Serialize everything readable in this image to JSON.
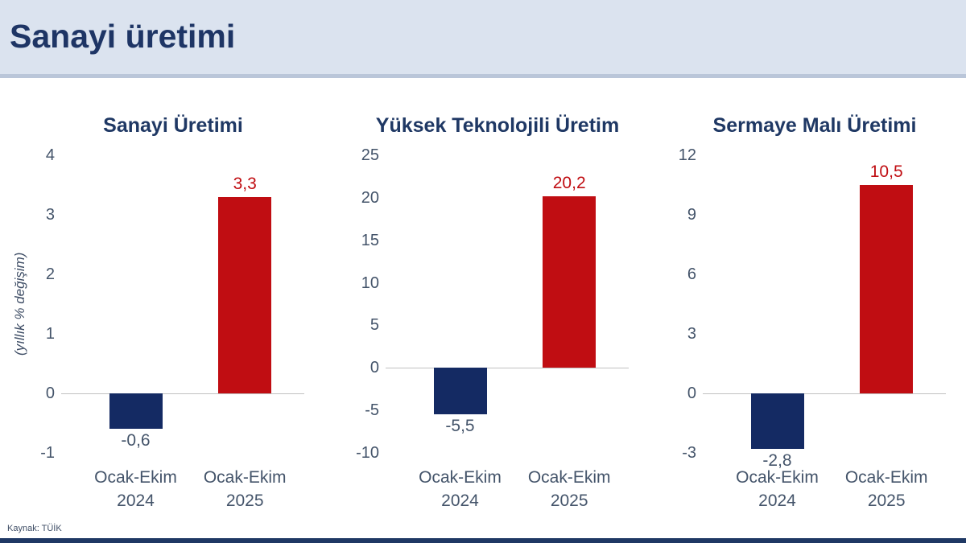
{
  "header": {
    "title": "Sanayi üretimi"
  },
  "source": "Kaynak: TÜİK",
  "colors": {
    "header_bg": "#dbe3ef",
    "header_border": "#bac6d9",
    "title_navy": "#1e3565",
    "chart_title_navy": "#1f3864",
    "tick_text": "#44546a",
    "navy_bar": "#142a63",
    "red_bar": "#c00d12",
    "zero_line": "#c0c0c0",
    "bottom_bar": "#1f3864"
  },
  "chart_data": [
    {
      "type": "bar",
      "title": "Sanayi Üretimi",
      "ylabel": "(yıllık % değişim)",
      "xlabel": "",
      "ylim": [
        -1,
        4
      ],
      "ticks": [
        4,
        3,
        2,
        1,
        0,
        -1
      ],
      "grid": false,
      "legend": "none",
      "categories": [
        "Ocak-Ekim\n2024",
        "Ocak-Ekim\n2025"
      ],
      "values": [
        -0.6,
        3.3
      ],
      "value_labels": [
        "-0,6",
        "3,3"
      ],
      "bar_colors": [
        "#142a63",
        "#c00d12"
      ],
      "label_colors": [
        "#44546a",
        "#c00d12"
      ]
    },
    {
      "type": "bar",
      "title": "Yüksek Teknolojili Üretim",
      "ylabel": "",
      "xlabel": "",
      "ylim": [
        -10,
        25
      ],
      "ticks": [
        25,
        20,
        15,
        10,
        5,
        0,
        -5,
        -10
      ],
      "grid": false,
      "legend": "none",
      "categories": [
        "Ocak-Ekim\n2024",
        "Ocak-Ekim\n2025"
      ],
      "values": [
        -5.5,
        20.2
      ],
      "value_labels": [
        "-5,5",
        "20,2"
      ],
      "bar_colors": [
        "#142a63",
        "#c00d12"
      ],
      "label_colors": [
        "#44546a",
        "#c00d12"
      ]
    },
    {
      "type": "bar",
      "title": "Sermaye Malı Üretimi",
      "ylabel": "",
      "xlabel": "",
      "ylim": [
        -3,
        12
      ],
      "ticks": [
        12,
        9,
        6,
        3,
        0,
        -3
      ],
      "grid": false,
      "legend": "none",
      "categories": [
        "Ocak-Ekim\n2024",
        "Ocak-Ekim\n2025"
      ],
      "values": [
        -2.8,
        10.5
      ],
      "value_labels": [
        "-2,8",
        "10,5"
      ],
      "bar_colors": [
        "#142a63",
        "#c00d12"
      ],
      "label_colors": [
        "#44546a",
        "#c00d12"
      ]
    }
  ]
}
